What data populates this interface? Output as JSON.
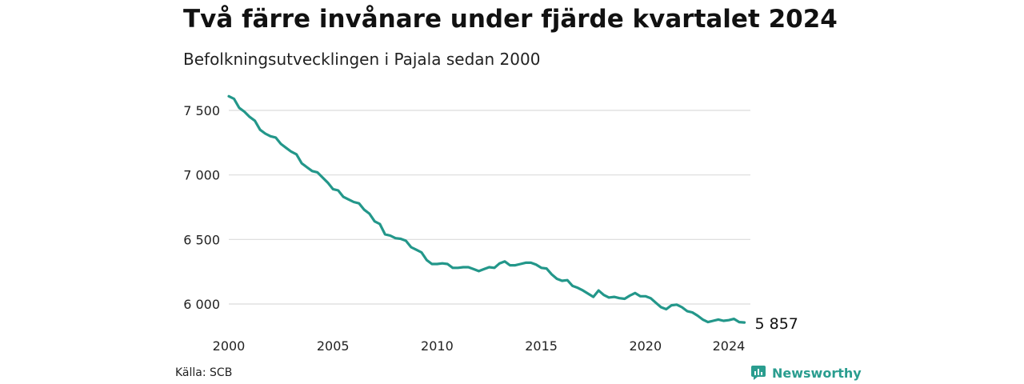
{
  "title": "Två färre invånare under fjärde kvartalet 2024",
  "subtitle": "Befolkningsutvecklingen i Pajala sedan 2000",
  "source": "Källa: SCB",
  "brand": {
    "name": "Newsworthy",
    "color": "#2a9d8f"
  },
  "chart_data": {
    "type": "line",
    "title": "Två färre invånare under fjärde kvartalet 2024",
    "subtitle": "Befolkningsutvecklingen i Pajala sedan 2000",
    "xlabel": "",
    "ylabel": "",
    "x_ticks": [
      "2000",
      "2005",
      "2010",
      "2015",
      "2020",
      "2024"
    ],
    "y_ticks": [
      6000,
      6500,
      7000,
      7500
    ],
    "y_tick_labels": [
      "6 000",
      "6 500",
      "7 000",
      "7 500"
    ],
    "ylim": [
      5800,
      7620
    ],
    "xlim": [
      2000.0,
      2025.0
    ],
    "grid": "horizontal",
    "line_color": "#23978a",
    "end_label": "5 857",
    "series": [
      {
        "x": [
          2000.0,
          2000.25,
          2000.5,
          2000.75,
          2001.0,
          2001.25,
          2001.5,
          2001.75,
          2002.0,
          2002.25,
          2002.5,
          2002.75,
          2003.0,
          2003.25,
          2003.5,
          2003.75,
          2004.0,
          2004.25,
          2004.5,
          2004.75,
          2005.0,
          2005.25,
          2005.5,
          2005.75,
          2006.0,
          2006.25,
          2006.5,
          2006.75,
          2007.0,
          2007.25,
          2007.5,
          2007.75,
          2008.0,
          2008.25,
          2008.5,
          2008.75,
          2009.0,
          2009.25,
          2009.5,
          2009.75,
          2010.0,
          2010.25,
          2010.5,
          2010.75,
          2011.0,
          2011.25,
          2011.5,
          2011.75,
          2012.0,
          2012.25,
          2012.5,
          2012.75,
          2013.0,
          2013.25,
          2013.5,
          2013.75,
          2014.0,
          2014.25,
          2014.5,
          2014.75,
          2015.0,
          2015.25,
          2015.5,
          2015.75,
          2016.0,
          2016.25,
          2016.5,
          2016.75,
          2017.0,
          2017.25,
          2017.5,
          2017.75,
          2018.0,
          2018.25,
          2018.5,
          2018.75,
          2019.0,
          2019.25,
          2019.5,
          2019.75,
          2020.0,
          2020.25,
          2020.5,
          2020.75,
          2021.0,
          2021.25,
          2021.5,
          2021.75,
          2022.0,
          2022.25,
          2022.5,
          2022.75,
          2023.0,
          2023.25,
          2023.5,
          2023.75,
          2024.0,
          2024.25,
          2024.5,
          2024.75
        ],
        "y": [
          7610,
          7590,
          7520,
          7490,
          7450,
          7420,
          7350,
          7320,
          7300,
          7290,
          7240,
          7210,
          7180,
          7160,
          7090,
          7060,
          7030,
          7020,
          6980,
          6940,
          6890,
          6880,
          6830,
          6810,
          6790,
          6780,
          6730,
          6700,
          6640,
          6620,
          6540,
          6530,
          6510,
          6505,
          6490,
          6440,
          6420,
          6400,
          6340,
          6310,
          6310,
          6315,
          6310,
          6280,
          6280,
          6285,
          6285,
          6270,
          6255,
          6270,
          6285,
          6280,
          6315,
          6330,
          6300,
          6300,
          6310,
          6320,
          6320,
          6305,
          6280,
          6275,
          6230,
          6195,
          6180,
          6185,
          6140,
          6125,
          6105,
          6080,
          6055,
          6105,
          6070,
          6050,
          6055,
          6045,
          6040,
          6065,
          6085,
          6060,
          6060,
          6045,
          6010,
          5975,
          5960,
          5990,
          5995,
          5975,
          5945,
          5935,
          5910,
          5880,
          5860,
          5870,
          5880,
          5870,
          5875,
          5885,
          5860,
          5857
        ]
      }
    ]
  }
}
